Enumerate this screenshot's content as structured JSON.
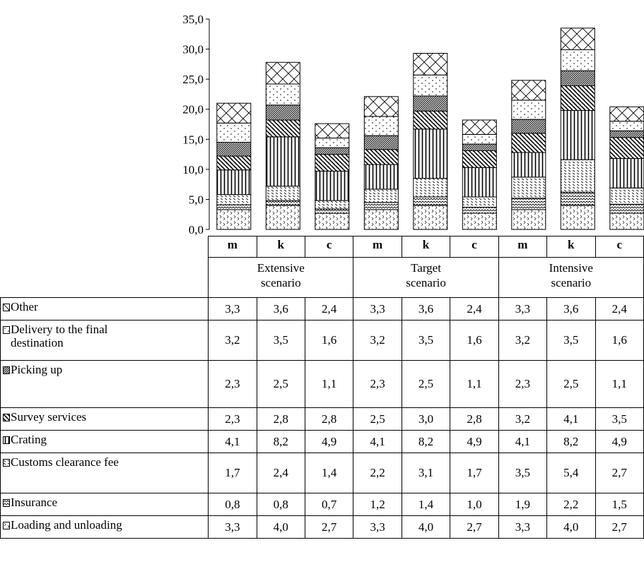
{
  "chart_data": {
    "type": "bar",
    "stacked": true,
    "title": "",
    "xlabel": "",
    "ylabel": "",
    "ylim": [
      0,
      35
    ],
    "y_ticks": [
      "0,0",
      "5,0",
      "10,0",
      "15,0",
      "20,0",
      "25,0",
      "30,0",
      "35,0"
    ],
    "groups": [
      {
        "label": "Extensive scenario",
        "line1": "Extensive",
        "line2": "scenario"
      },
      {
        "label": "Target scenario",
        "line1": "Target",
        "line2": "scenario"
      },
      {
        "label": "Intensive scenario",
        "line1": "Intensive",
        "line2": "scenario"
      }
    ],
    "categories": [
      "m",
      "k",
      "c",
      "m",
      "k",
      "c",
      "m",
      "k",
      "c"
    ],
    "series": [
      {
        "name": "Other",
        "pattern": "diagonal-cross",
        "values": [
          3.3,
          3.6,
          2.4,
          3.3,
          3.6,
          2.4,
          3.3,
          3.6,
          2.4
        ],
        "display": [
          "3,3",
          "3,6",
          "2,4",
          "3,3",
          "3,6",
          "2,4",
          "3,3",
          "3,6",
          "2,4"
        ]
      },
      {
        "name": "Delivery to the final destination",
        "pattern": "dots",
        "values": [
          3.2,
          3.5,
          1.6,
          3.2,
          3.5,
          1.6,
          3.2,
          3.5,
          1.6
        ],
        "display": [
          "3,2",
          "3,5",
          "1,6",
          "3,2",
          "3,5",
          "1,6",
          "3,2",
          "3,5",
          "1,6"
        ]
      },
      {
        "name": "Picking up",
        "pattern": "dense-hatch",
        "values": [
          2.3,
          2.5,
          1.1,
          2.3,
          2.5,
          1.1,
          2.3,
          2.5,
          1.1
        ],
        "display": [
          "2,3",
          "2,5",
          "1,1",
          "2,3",
          "2,5",
          "1,1",
          "2,3",
          "2,5",
          "1,1"
        ]
      },
      {
        "name": "Survey services",
        "pattern": "wide-downward-diagonal",
        "values": [
          2.3,
          2.8,
          2.8,
          2.5,
          3.0,
          2.8,
          3.2,
          4.1,
          3.5
        ],
        "display": [
          "2,3",
          "2,8",
          "2,8",
          "2,5",
          "3,0",
          "2,8",
          "3,2",
          "4,1",
          "3,5"
        ]
      },
      {
        "name": "Crating",
        "pattern": "vertical",
        "values": [
          4.1,
          8.2,
          4.9,
          4.1,
          8.2,
          4.9,
          4.1,
          8.2,
          4.9
        ],
        "display": [
          "4,1",
          "8,2",
          "4,9",
          "4,1",
          "8,2",
          "4,9",
          "4,1",
          "8,2",
          "4,9"
        ]
      },
      {
        "name": "Customs clearance fee",
        "pattern": "light-downward-diagonal",
        "values": [
          1.7,
          2.4,
          1.4,
          2.2,
          3.1,
          1.7,
          3.5,
          5.4,
          2.7
        ],
        "display": [
          "1,7",
          "2,4",
          "1,4",
          "2,2",
          "3,1",
          "1,7",
          "3,5",
          "5,4",
          "2,7"
        ]
      },
      {
        "name": "Insurance",
        "pattern": "zigzag",
        "values": [
          0.8,
          0.8,
          0.7,
          1.2,
          1.4,
          1.0,
          1.9,
          2.2,
          1.5
        ],
        "display": [
          "0,8",
          "0,8",
          "0,7",
          "1,2",
          "1,4",
          "1,0",
          "1,9",
          "2,2",
          "1,5"
        ]
      },
      {
        "name": "Loading and unloading",
        "pattern": "confetti",
        "values": [
          3.3,
          4.0,
          2.7,
          3.3,
          4.0,
          2.7,
          3.3,
          4.0,
          2.7
        ],
        "display": [
          "3,3",
          "4,0",
          "2,7",
          "3,3",
          "4,0",
          "2,7",
          "3,3",
          "4,0",
          "2,7"
        ]
      }
    ]
  }
}
